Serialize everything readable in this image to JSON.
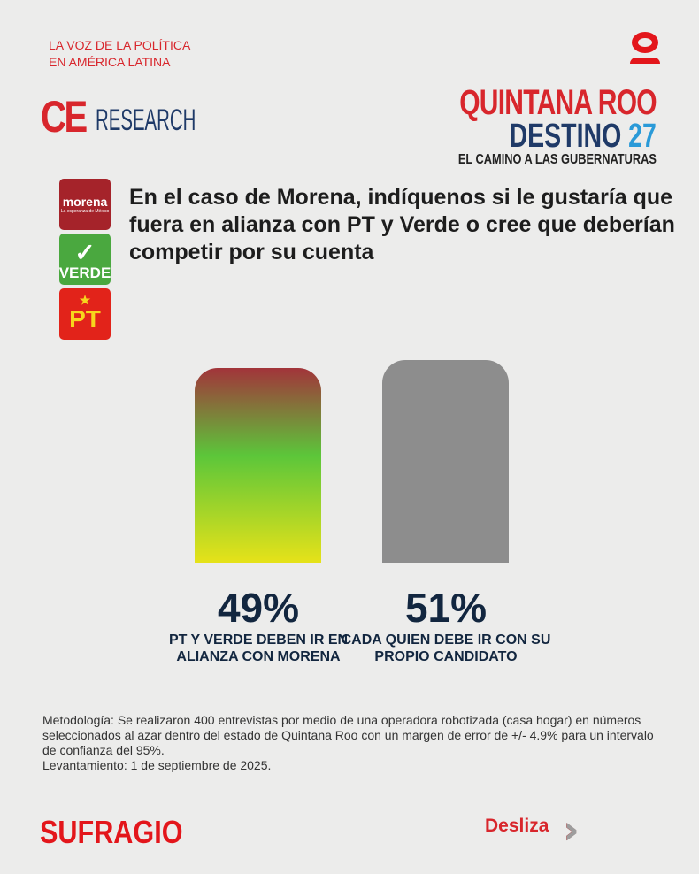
{
  "header": {
    "tagline": [
      "LA VOZ DE LA POLÍTICA",
      "EN AMÉRICA LATINA"
    ],
    "brand_ce": "CE",
    "brand_research": "RESEARCH",
    "series_title": {
      "line1": "QUINTANA ROO",
      "line2a": "DESTINO",
      "line2b": "27",
      "line3": "EL CAMINO A LAS GUBERNATURAS"
    }
  },
  "parties": [
    {
      "name": "morena",
      "subtitle": "La esperanza de México",
      "color": "#a5232a"
    },
    {
      "name": "VERDE",
      "color": "#4aa83f"
    },
    {
      "name": "PT",
      "color": "#e2231a"
    }
  ],
  "question": "En el caso de Morena, indíquenos si le gustaría que fuera en alianza con PT y Verde o cree que deberían competir por su cuenta",
  "chart_data": {
    "type": "bar",
    "categories": [
      "PT Y VERDE DEBEN IR EN ALIANZA CON MORENA",
      "CADA QUIEN DEBE IR CON SU PROPIO CANDIDATO"
    ],
    "values": [
      49,
      51
    ],
    "value_labels": [
      "49%",
      "51%"
    ],
    "colors": [
      "gradient red-green-yellow",
      "#8d8d8d"
    ],
    "ylim": [
      0,
      100
    ],
    "grid": false
  },
  "methodology": "Metodología: Se realizaron 400 entrevistas por medio de una operadora robotizada (casa hogar) en números seleccionados al azar dentro del estado de Quintana Roo con un margen de error de +/- 4.9% para un intervalo de confianza del 95%.",
  "fieldwork": "Levantamiento: 1 de septiembre de 2025.",
  "footer": {
    "brand": "SUFRAGIO",
    "swipe": "Desliza"
  }
}
